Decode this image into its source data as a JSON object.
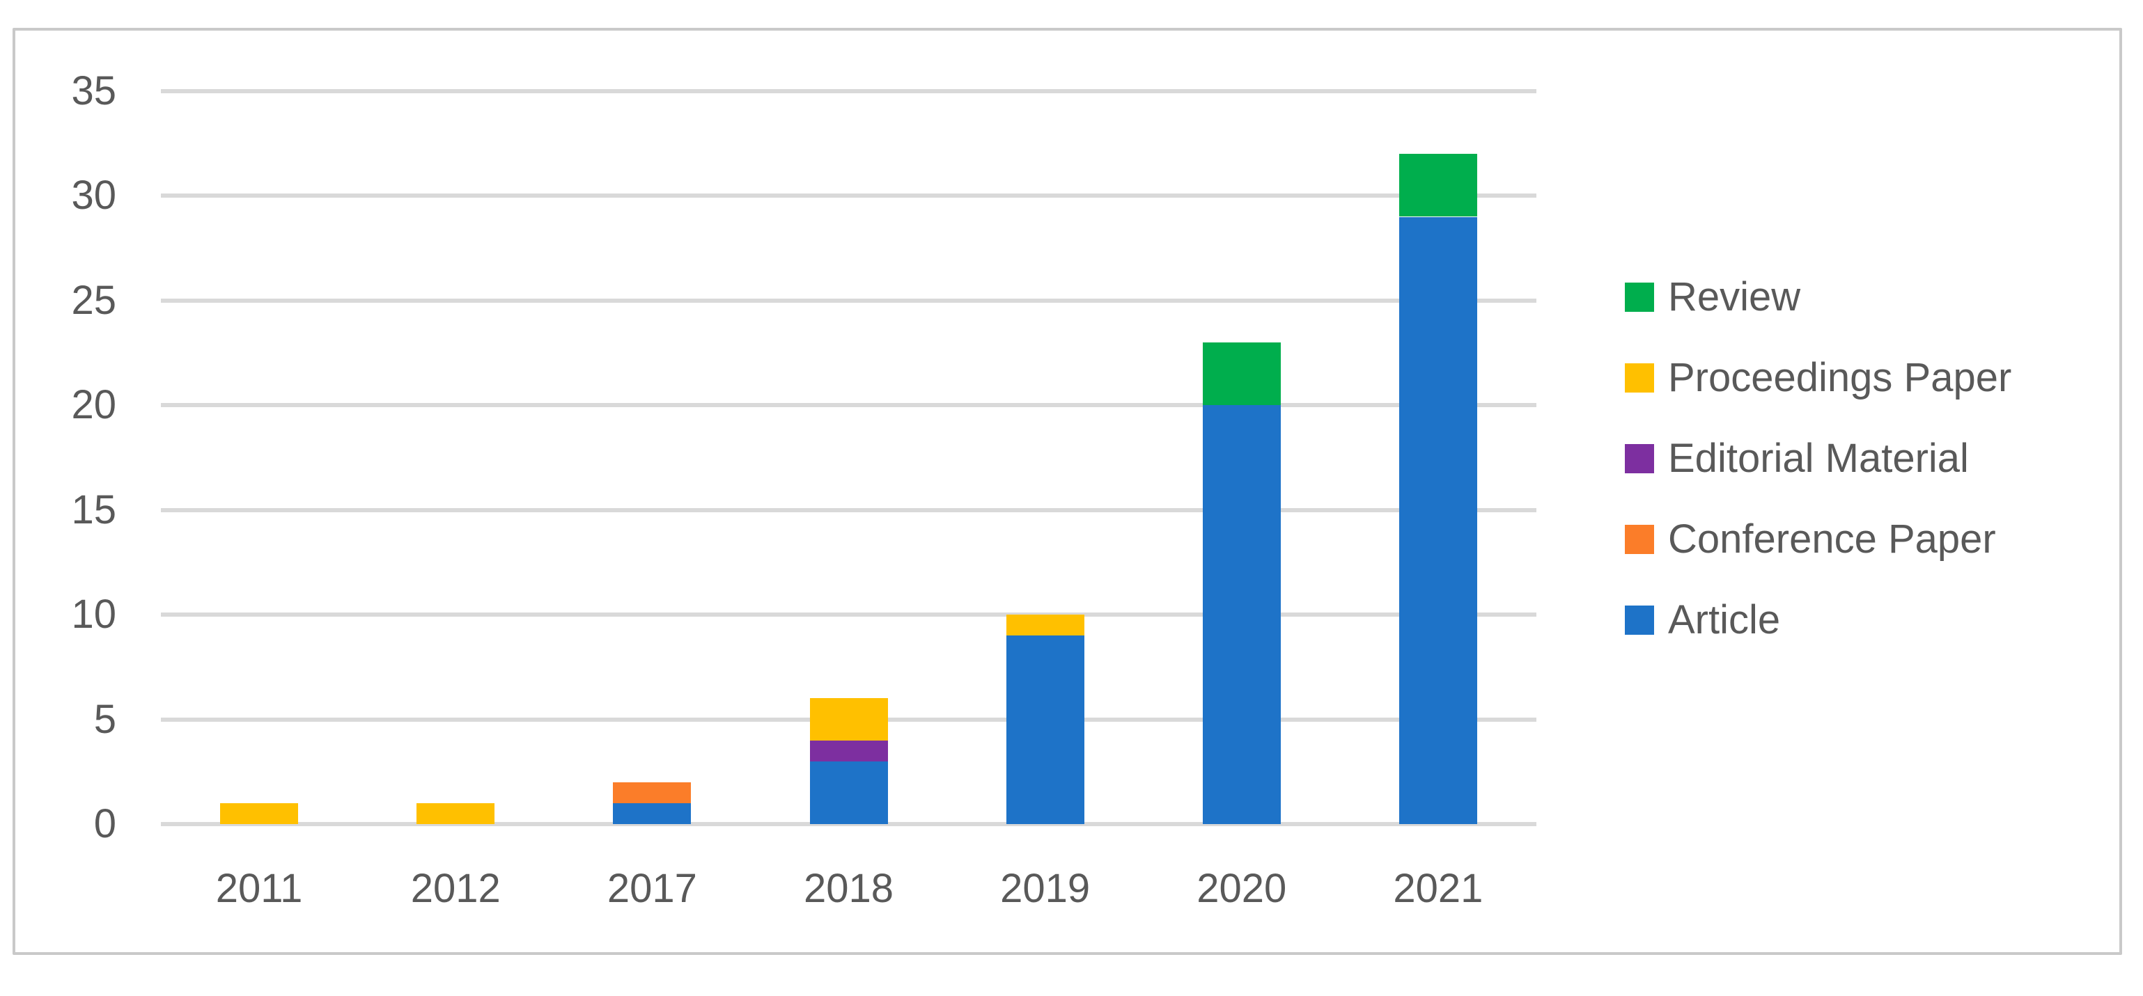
{
  "figure": {
    "background_color": "#ffffff",
    "border_color": "#c9c9c9",
    "gridline_color": "#d9d9d9",
    "axis_text_color": "#595959"
  },
  "chart_data": {
    "type": "bar",
    "stacked": true,
    "title": "",
    "xlabel": "",
    "ylabel": "",
    "categories": [
      "2011",
      "2012",
      "2017",
      "2018",
      "2019",
      "2020",
      "2021"
    ],
    "series": [
      {
        "name": "Article",
        "color": "#1e73c8",
        "values": [
          0,
          0,
          1,
          3,
          9,
          20,
          29
        ]
      },
      {
        "name": "Conference Paper",
        "color": "#fb7d29",
        "values": [
          0,
          0,
          1,
          0,
          0,
          0,
          0
        ]
      },
      {
        "name": "Editorial Material",
        "color": "#7d2fa0",
        "values": [
          0,
          0,
          0,
          1,
          0,
          0,
          0
        ]
      },
      {
        "name": "Proceedings Paper",
        "color": "#ffc000",
        "values": [
          1,
          1,
          0,
          2,
          1,
          0,
          0
        ]
      },
      {
        "name": "Review",
        "color": "#00ae4d",
        "values": [
          0,
          0,
          0,
          0,
          0,
          3,
          3
        ]
      }
    ],
    "totals": [
      1,
      1,
      2,
      6,
      10,
      23,
      32
    ],
    "y_ticks": [
      "0",
      "5",
      "10",
      "15",
      "20",
      "25",
      "30",
      "35"
    ],
    "ylim": [
      0,
      35
    ],
    "grid": "horizontal",
    "legend_position": "right",
    "legend": [
      {
        "label": "Review",
        "color": "#00ae4d"
      },
      {
        "label": "Proceedings Paper",
        "color": "#ffc000"
      },
      {
        "label": "Editorial Material",
        "color": "#7d2fa0"
      },
      {
        "label": "Conference Paper",
        "color": "#fb7d29"
      },
      {
        "label": "Article",
        "color": "#1e73c8"
      }
    ]
  }
}
